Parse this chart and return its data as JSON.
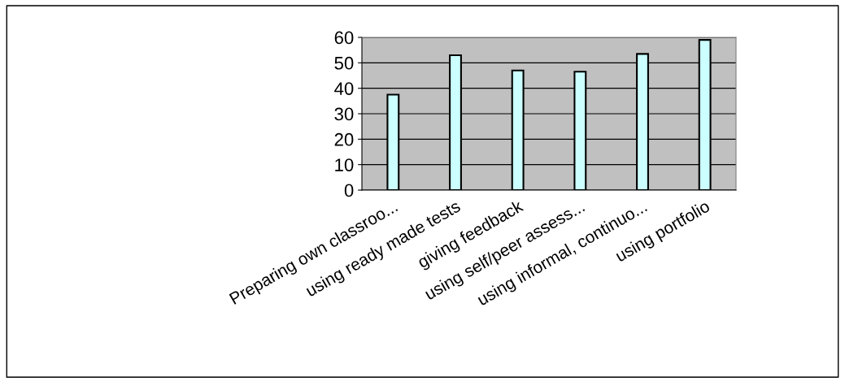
{
  "chart_data": {
    "type": "bar",
    "categories": [
      "Preparing own classroo...",
      "using ready made tests",
      "giving feedback",
      "using self/peer assess...",
      "using informal, continuo...",
      "using portfolio"
    ],
    "values": [
      37.5,
      53,
      47,
      46.5,
      53.5,
      59
    ],
    "color": "#ccffff",
    "ylim": [
      0,
      60
    ],
    "yticks": [
      0,
      10,
      20,
      30,
      40,
      50,
      60
    ],
    "grid": "y"
  }
}
